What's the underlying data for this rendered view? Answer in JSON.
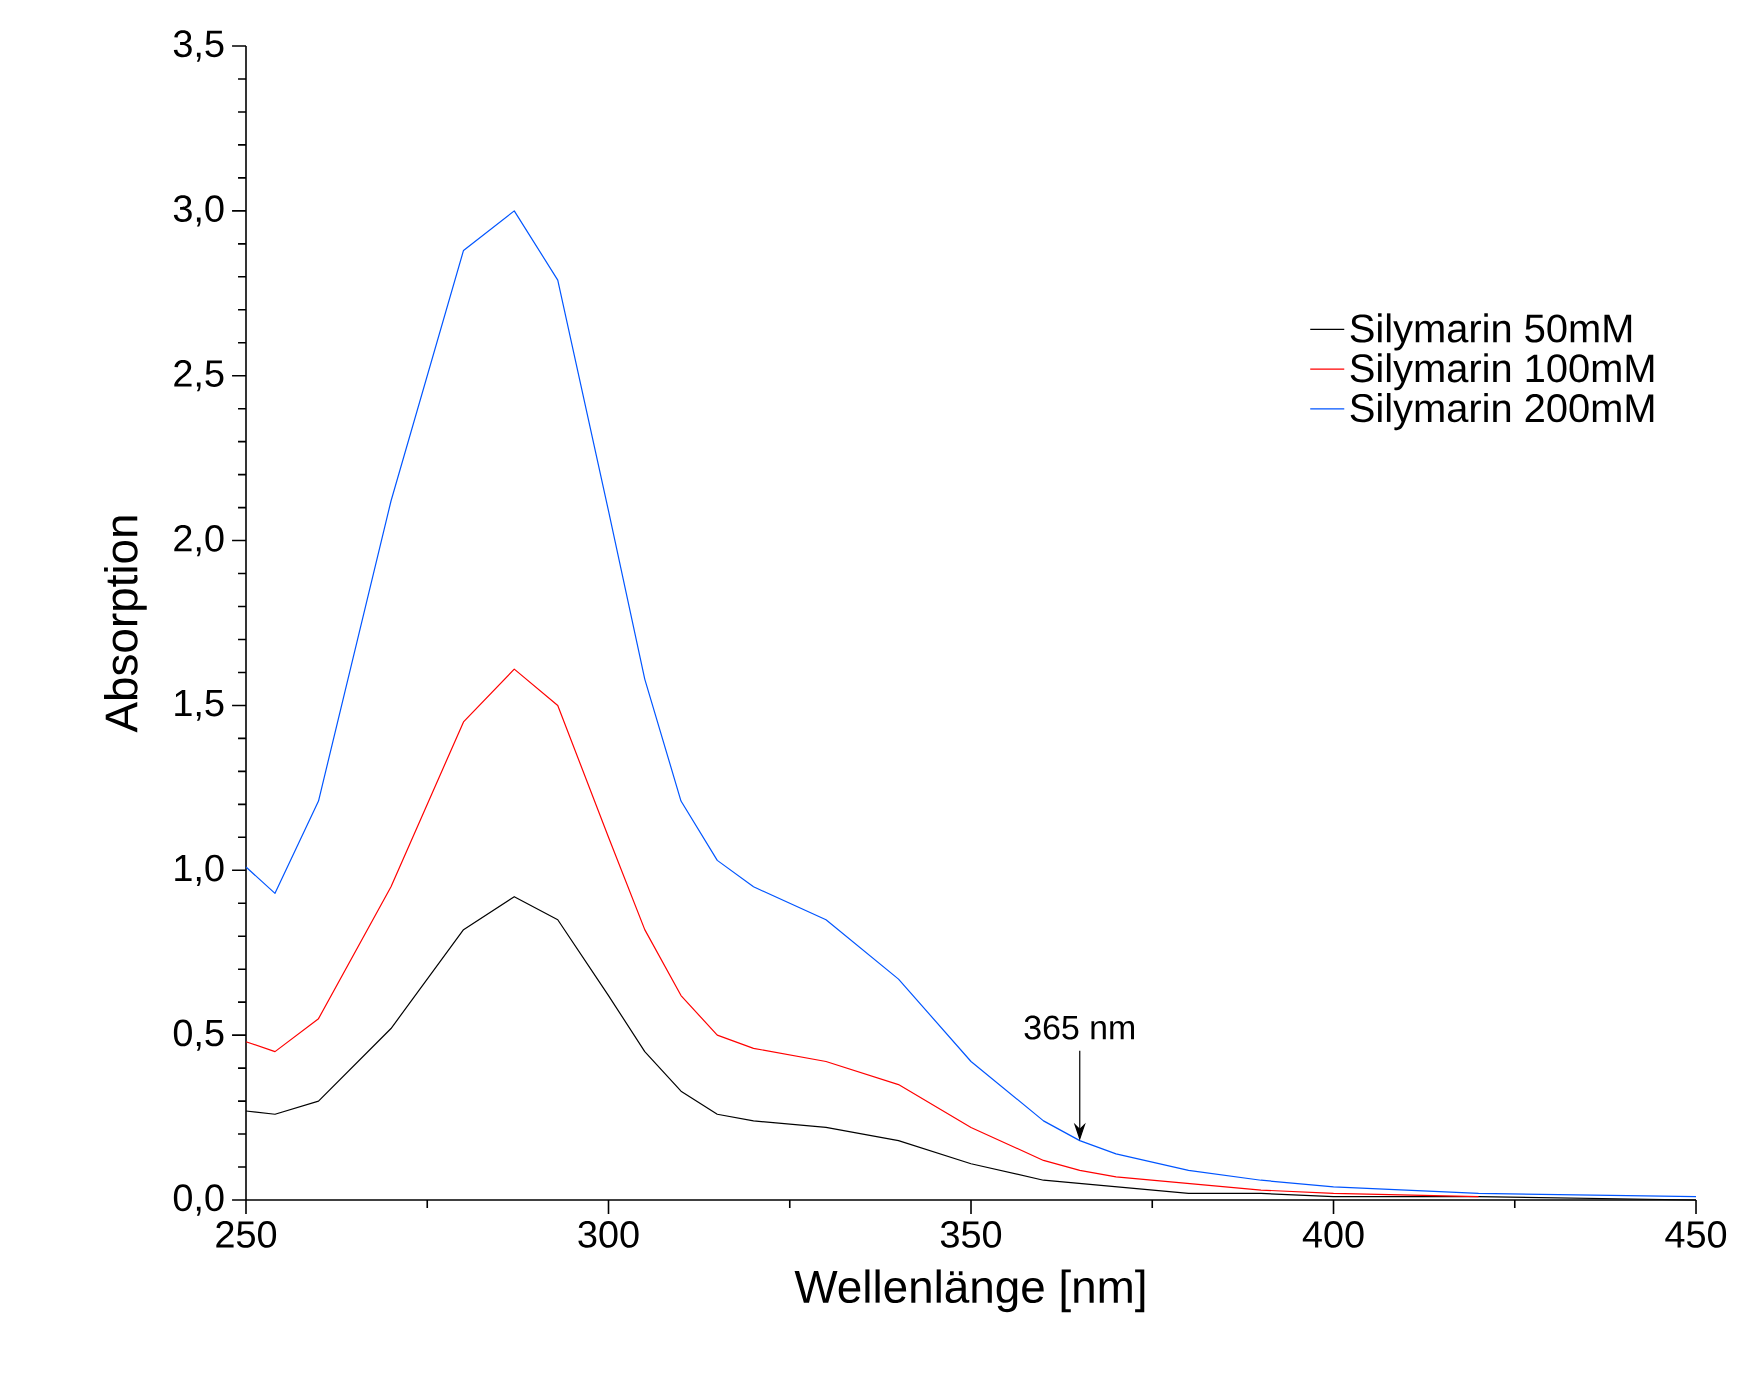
{
  "chart_data": {
    "type": "line",
    "xlabel": "Wellenlänge [nm]",
    "ylabel": "Absorption",
    "x": [
      250,
      254,
      260,
      270,
      280,
      287,
      293,
      300,
      305,
      310,
      315,
      320,
      330,
      340,
      350,
      360,
      365,
      370,
      380,
      390,
      400,
      420,
      450
    ],
    "series": [
      {
        "name": "Silymarin 50mM",
        "color": "#000000",
        "values": [
          0.27,
          0.26,
          0.3,
          0.52,
          0.82,
          0.92,
          0.85,
          0.62,
          0.45,
          0.33,
          0.26,
          0.24,
          0.22,
          0.18,
          0.11,
          0.06,
          0.05,
          0.04,
          0.02,
          0.02,
          0.01,
          0.01,
          0.0
        ]
      },
      {
        "name": "Silymarin 100mM",
        "color": "#ff0000",
        "values": [
          0.48,
          0.45,
          0.55,
          0.95,
          1.45,
          1.61,
          1.5,
          1.1,
          0.82,
          0.62,
          0.5,
          0.46,
          0.42,
          0.35,
          0.22,
          0.12,
          0.09,
          0.07,
          0.05,
          0.03,
          0.02,
          0.01,
          null
        ]
      },
      {
        "name": "Silymarin 200mM",
        "color": "#0055ff",
        "values": [
          1.01,
          0.93,
          1.21,
          2.12,
          2.88,
          3.0,
          2.79,
          2.09,
          1.58,
          1.21,
          1.03,
          0.95,
          0.85,
          0.67,
          0.42,
          0.24,
          0.18,
          0.14,
          0.09,
          0.06,
          0.04,
          0.02,
          0.01
        ]
      }
    ],
    "xlim": [
      250,
      450
    ],
    "xticks": [
      250,
      300,
      350,
      400,
      450
    ],
    "ylim": [
      0,
      3.5
    ],
    "yticks": [
      {
        "value": 0,
        "label": "0,0"
      },
      {
        "value": 0.5,
        "label": "0,5"
      },
      {
        "value": 1,
        "label": "1,0"
      },
      {
        "value": 1.5,
        "label": "1,5"
      },
      {
        "value": 2,
        "label": "2,0"
      },
      {
        "value": 2.5,
        "label": "2,5"
      },
      {
        "value": 3,
        "label": "3,0"
      },
      {
        "value": 3.5,
        "label": "3,5"
      }
    ],
    "annotations": [
      {
        "text": "365 nm",
        "x": 365,
        "y": 0.18
      }
    ],
    "legend": "right",
    "grid": false,
    "marker": "none",
    "line_style": "solid"
  }
}
